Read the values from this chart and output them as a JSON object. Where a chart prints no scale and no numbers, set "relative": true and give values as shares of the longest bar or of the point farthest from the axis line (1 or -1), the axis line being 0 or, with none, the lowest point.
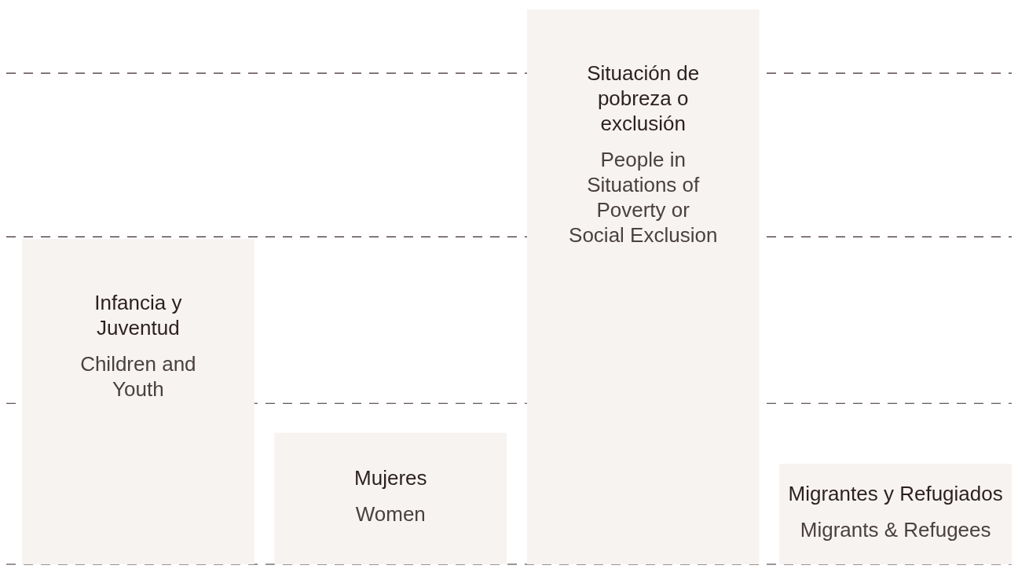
{
  "chart_data": {
    "type": "bar",
    "relative": true,
    "grid": true,
    "categories": [
      "Infancia y Juventud\nChildren and Youth",
      "Mujeres\nWomen",
      "Situación de pobreza o exclusión\nPeople in Situations of Poverty or Social Exclusion",
      "Migrantes y Refugiados\nMigrants & Refugees"
    ],
    "values": [
      0.586,
      0.237,
      1,
      0.181
    ],
    "color": "#f6f3f0"
  }
}
